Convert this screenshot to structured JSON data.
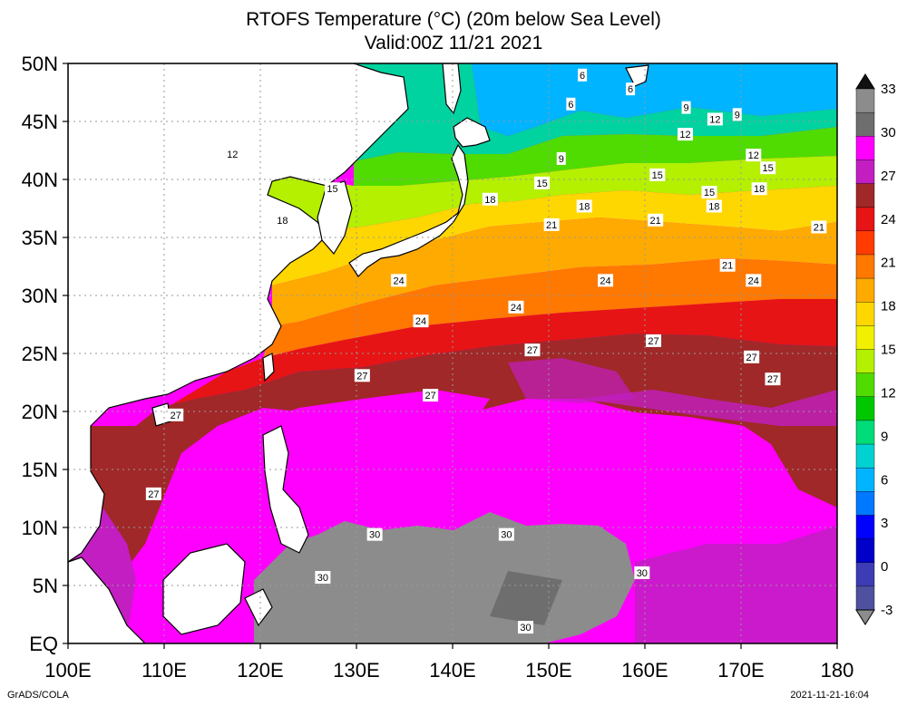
{
  "title": {
    "line1": "RTOFS Temperature (°C) (20m below Sea Level)",
    "line2": "Valid:00Z 11/21 2021"
  },
  "axes": {
    "x_ticks": [
      "100E",
      "110E",
      "120E",
      "130E",
      "140E",
      "150E",
      "160E",
      "170E",
      "180"
    ],
    "y_ticks": [
      "EQ",
      "5N",
      "10N",
      "15N",
      "20N",
      "25N",
      "30N",
      "35N",
      "40N",
      "45N",
      "50N"
    ]
  },
  "colorbar": {
    "labels": [
      "33",
      "30",
      "27",
      "24",
      "21",
      "18",
      "15",
      "12",
      "9",
      "6",
      "3",
      "0",
      "-3"
    ],
    "colors": [
      "#8c8c8c",
      "#6e6e6e",
      "#ff00ff",
      "#c21ec2",
      "#a02828",
      "#e61414",
      "#ff3c00",
      "#ff7800",
      "#ffaa00",
      "#ffd700",
      "#f0f000",
      "#b4f000",
      "#50dc00",
      "#00c800",
      "#00dc78",
      "#00d2d2",
      "#00b4ff",
      "#0078ff",
      "#0000ff",
      "#0000c8",
      "#3c3cb4",
      "#5050a0"
    ]
  },
  "contour_labels": [
    {
      "text": "6",
      "lon": 153.5,
      "lat": 49
    },
    {
      "text": "6",
      "lon": 158.5,
      "lat": 47.8
    },
    {
      "text": "6",
      "lon": 152.3,
      "lat": 46.5
    },
    {
      "text": "9",
      "lon": 164.3,
      "lat": 46.2
    },
    {
      "text": "9",
      "lon": 169.6,
      "lat": 45.6
    },
    {
      "text": "9",
      "lon": 151.3,
      "lat": 41.8
    },
    {
      "text": "12",
      "lon": 117.1,
      "lat": 42.2
    },
    {
      "text": "12",
      "lon": 167.3,
      "lat": 45.2
    },
    {
      "text": "12",
      "lon": 164.2,
      "lat": 43.9
    },
    {
      "text": "12",
      "lon": 171.3,
      "lat": 42.1
    },
    {
      "text": "15",
      "lon": 127.5,
      "lat": 39.2
    },
    {
      "text": "15",
      "lon": 149.3,
      "lat": 39.7
    },
    {
      "text": "15",
      "lon": 161.3,
      "lat": 40.4
    },
    {
      "text": "15",
      "lon": 166.7,
      "lat": 38.9
    },
    {
      "text": "15",
      "lon": 172.8,
      "lat": 41
    },
    {
      "text": "18",
      "lon": 122.3,
      "lat": 36.5
    },
    {
      "text": "18",
      "lon": 143.9,
      "lat": 38.3
    },
    {
      "text": "18",
      "lon": 153.7,
      "lat": 37.7
    },
    {
      "text": "18",
      "lon": 167.2,
      "lat": 37.7
    },
    {
      "text": "18",
      "lon": 171.9,
      "lat": 39.2
    },
    {
      "text": "21",
      "lon": 150.3,
      "lat": 36.1
    },
    {
      "text": "21",
      "lon": 161.1,
      "lat": 36.5
    },
    {
      "text": "21",
      "lon": 178.1,
      "lat": 35.9
    },
    {
      "text": "21",
      "lon": 168.6,
      "lat": 32.6
    },
    {
      "text": "24",
      "lon": 134.4,
      "lat": 31.3
    },
    {
      "text": "24",
      "lon": 155.9,
      "lat": 31.3
    },
    {
      "text": "24",
      "lon": 171.3,
      "lat": 31.3
    },
    {
      "text": "24",
      "lon": 136.7,
      "lat": 27.8
    },
    {
      "text": "24",
      "lon": 146.6,
      "lat": 29
    },
    {
      "text": "27",
      "lon": 160.9,
      "lat": 26.1
    },
    {
      "text": "27",
      "lon": 148.3,
      "lat": 25.3
    },
    {
      "text": "27",
      "lon": 171.1,
      "lat": 24.7
    },
    {
      "text": "27",
      "lon": 130.6,
      "lat": 23.1
    },
    {
      "text": "27",
      "lon": 173.3,
      "lat": 22.8
    },
    {
      "text": "27",
      "lon": 137.7,
      "lat": 21.4
    },
    {
      "text": "27",
      "lon": 111.2,
      "lat": 19.7
    },
    {
      "text": "27",
      "lon": 108.9,
      "lat": 12.9
    },
    {
      "text": "30",
      "lon": 145.6,
      "lat": 9.4
    },
    {
      "text": "30",
      "lon": 131.9,
      "lat": 9.4
    },
    {
      "text": "30",
      "lon": 126.5,
      "lat": 5.7
    },
    {
      "text": "30",
      "lon": 159.7,
      "lat": 6.1
    },
    {
      "text": "30",
      "lon": 147.6,
      "lat": 1.4
    }
  ],
  "footer": {
    "credit": "GrADS/COLA",
    "stamp": "2021-11-21-16:04"
  }
}
